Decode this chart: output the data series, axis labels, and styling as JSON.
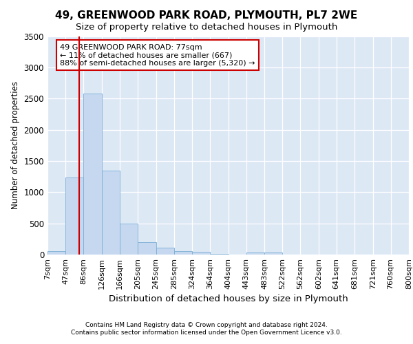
{
  "title1": "49, GREENWOOD PARK ROAD, PLYMOUTH, PL7 2WE",
  "title2": "Size of property relative to detached houses in Plymouth",
  "xlabel": "Distribution of detached houses by size in Plymouth",
  "ylabel": "Number of detached properties",
  "bin_labels": [
    "7sqm",
    "47sqm",
    "86sqm",
    "126sqm",
    "166sqm",
    "205sqm",
    "245sqm",
    "285sqm",
    "324sqm",
    "364sqm",
    "404sqm",
    "443sqm",
    "483sqm",
    "522sqm",
    "562sqm",
    "602sqm",
    "641sqm",
    "681sqm",
    "721sqm",
    "760sqm",
    "800sqm"
  ],
  "bar_values": [
    60,
    1230,
    2580,
    1340,
    500,
    195,
    105,
    55,
    45,
    15,
    5,
    30,
    30,
    0,
    0,
    0,
    0,
    0,
    0,
    0,
    0
  ],
  "bar_color": "#c5d8f0",
  "bar_edge_color": "#7aadd4",
  "ylim": [
    0,
    3500
  ],
  "yticks": [
    0,
    500,
    1000,
    1500,
    2000,
    2500,
    3000,
    3500
  ],
  "red_line_x": 77,
  "red_line_color": "#cc0000",
  "annotation_line1": "49 GREENWOOD PARK ROAD: 77sqm",
  "annotation_line2": "← 11% of detached houses are smaller (667)",
  "annotation_line3": "88% of semi-detached houses are larger (5,320) →",
  "annotation_box_color": "#cc0000",
  "background_color": "#dde8f5",
  "footer1": "Contains HM Land Registry data © Crown copyright and database right 2024.",
  "footer2": "Contains public sector information licensed under the Open Government Licence v3.0.",
  "bin_edges": [
    7,
    47,
    86,
    126,
    166,
    205,
    245,
    285,
    324,
    364,
    404,
    443,
    483,
    522,
    562,
    602,
    641,
    681,
    721,
    760,
    800
  ]
}
